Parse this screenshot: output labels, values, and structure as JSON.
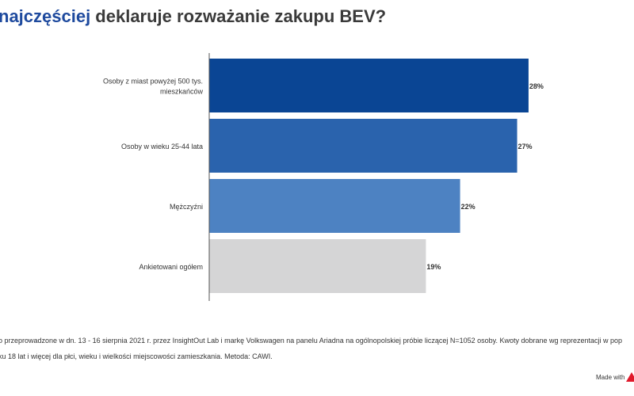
{
  "title": {
    "highlight": "najczęściej",
    "rest": " deklaruje rozważanie zakupu BEV?",
    "highlight_color": "#1e4a9e"
  },
  "chart_data": {
    "type": "bar",
    "orientation": "horizontal",
    "categories": [
      "Osoby z miast powyżej 500 tys. mieszkańców",
      "Osoby w wieku 25-44 lata",
      "Mężczyźni",
      "Ankietowani ogółem"
    ],
    "category_lines": [
      [
        "Osoby z miast powyżej 500 tys.",
        "mieszkańców"
      ],
      [
        "Osoby w wieku 25-44 lata"
      ],
      [
        "Mężczyźni"
      ],
      [
        "Ankietowani ogółem"
      ]
    ],
    "values": [
      28,
      27,
      22,
      19
    ],
    "value_labels": [
      "28%",
      "27%",
      "22%",
      "19%"
    ],
    "colors": [
      "#0a4594",
      "#2a63ad",
      "#4d82c2",
      "#d5d5d6"
    ],
    "unit": "%",
    "grid": false,
    "legend": "none"
  },
  "footnote": {
    "line1": "o przeprowadzone w dn. 13 - 16 sierpnia 2021 r. przez InsightOut Lab i markę Volkswagen na panelu Ariadna na ogólnopolskiej próbie liczącej N=1052 osoby. Kwoty dobrane wg reprezentacji w pop",
    "line2": "ku 18 lat i więcej dla płci, wieku i wielkości miejscowości zamieszkania. Metoda: CAWI."
  },
  "made_with": "Made with",
  "brand_color": "#e0192b"
}
